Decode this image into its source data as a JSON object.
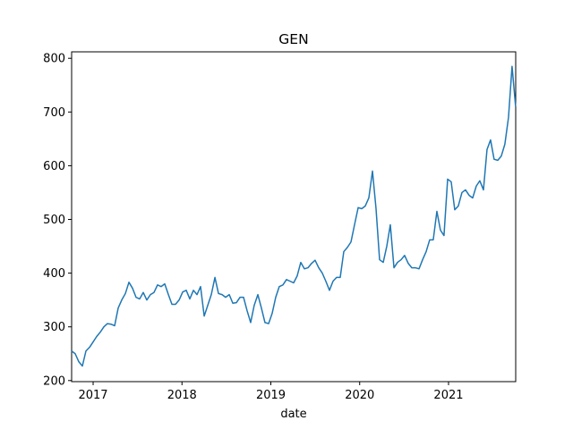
{
  "chart_data": {
    "type": "line",
    "title": "GEN",
    "x_label": "date",
    "x": [
      2016.758,
      2016.798,
      2016.839,
      2016.879,
      2016.919,
      2016.96,
      2017.0,
      2017.04,
      2017.08,
      2017.121,
      2017.161,
      2017.201,
      2017.242,
      2017.282,
      2017.322,
      2017.363,
      2017.403,
      2017.443,
      2017.483,
      2017.524,
      2017.564,
      2017.604,
      2017.645,
      2017.685,
      2017.725,
      2017.766,
      2017.806,
      2017.847,
      2017.887,
      2017.927,
      2017.968,
      2018.008,
      2018.048,
      2018.088,
      2018.129,
      2018.169,
      2018.209,
      2018.25,
      2018.29,
      2018.33,
      2018.371,
      2018.411,
      2018.451,
      2018.491,
      2018.532,
      2018.572,
      2018.612,
      2018.653,
      2018.693,
      2018.733,
      2018.773,
      2018.813,
      2018.854,
      2018.894,
      2018.934,
      2018.975,
      2019.015,
      2019.055,
      2019.095,
      2019.136,
      2019.176,
      2019.216,
      2019.257,
      2019.297,
      2019.337,
      2019.378,
      2019.418,
      2019.458,
      2019.498,
      2019.539,
      2019.579,
      2019.619,
      2019.66,
      2019.7,
      2019.74,
      2019.781,
      2019.821,
      2019.862,
      2019.902,
      2019.942,
      2019.983,
      2020.023,
      2020.063,
      2020.103,
      2020.144,
      2020.184,
      2020.224,
      2020.265,
      2020.305,
      2020.345,
      2020.386,
      2020.426,
      2020.466,
      2020.506,
      2020.547,
      2020.587,
      2020.627,
      2020.668,
      2020.708,
      2020.748,
      2020.788,
      2020.828,
      2020.869,
      2020.909,
      2020.949,
      2020.99,
      2021.03,
      2021.07,
      2021.11,
      2021.151,
      2021.191,
      2021.231,
      2021.272,
      2021.312,
      2021.352,
      2021.393,
      2021.433,
      2021.473,
      2021.513,
      2021.554,
      2021.594,
      2021.634,
      2021.675,
      2021.715,
      2021.755
    ],
    "series": [
      {
        "name": "GEN",
        "color": "#1f77b4",
        "values": [
          255,
          250,
          235,
          227,
          255,
          262,
          272,
          282,
          290,
          300,
          306,
          305,
          302,
          335,
          350,
          362,
          383,
          372,
          355,
          352,
          364,
          350,
          360,
          364,
          378,
          375,
          380,
          360,
          342,
          342,
          350,
          365,
          368,
          352,
          368,
          360,
          375,
          320,
          340,
          360,
          392,
          362,
          360,
          355,
          360,
          344,
          345,
          355,
          355,
          330,
          308,
          340,
          360,
          335,
          308,
          306,
          325,
          355,
          375,
          378,
          388,
          385,
          382,
          395,
          420,
          408,
          410,
          418,
          424,
          410,
          400,
          385,
          368,
          385,
          392,
          392,
          440,
          448,
          458,
          490,
          522,
          520,
          525,
          540,
          590,
          520,
          425,
          420,
          450,
          490,
          410,
          420,
          425,
          433,
          418,
          410,
          410,
          408,
          425,
          440,
          462,
          462,
          515,
          480,
          470,
          575,
          570,
          518,
          525,
          550,
          555,
          545,
          540,
          562,
          572,
          555,
          630,
          648,
          612,
          610,
          618,
          640,
          690,
          785,
          710
        ]
      }
    ],
    "xlim": [
      2016.758,
      2021.756
    ],
    "xticks": [
      2017,
      2018,
      2019,
      2020,
      2021
    ],
    "ylim": [
      198,
      812
    ],
    "yticks": [
      200,
      300,
      400,
      500,
      600,
      700,
      800
    ]
  }
}
